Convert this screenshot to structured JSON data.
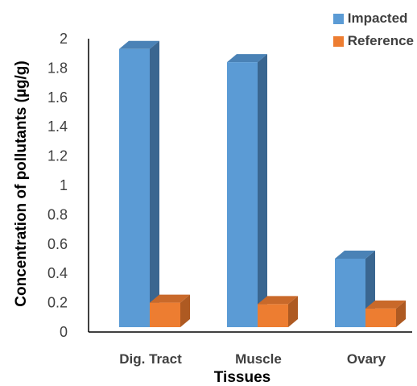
{
  "chart_data": {
    "type": "bar",
    "style": "3d-column",
    "title": "",
    "xlabel": "Tissues",
    "ylabel": "Concentration of pollutants (µg/g)",
    "categories": [
      "Dig. Tract",
      "Muscle",
      "Ovary"
    ],
    "ylim": [
      0,
      2
    ],
    "yticks": [
      "0",
      "0.2",
      "0.4",
      "0.6",
      "0.8",
      "1",
      "1.2",
      "1.4",
      "1.6",
      "1.8",
      "2"
    ],
    "series": [
      {
        "name": "Impacted",
        "values": [
          1.93,
          1.84,
          0.5
        ],
        "color": "#5b9bd5",
        "side_color": "#3a6690",
        "top_color": "#4a82b6"
      },
      {
        "name": "Reference",
        "values": [
          0.2,
          0.19,
          0.16
        ],
        "color": "#ed7d31",
        "side_color": "#ae5a22",
        "top_color": "#c9692a"
      }
    ],
    "grid": false,
    "legend_position": "top-right"
  }
}
